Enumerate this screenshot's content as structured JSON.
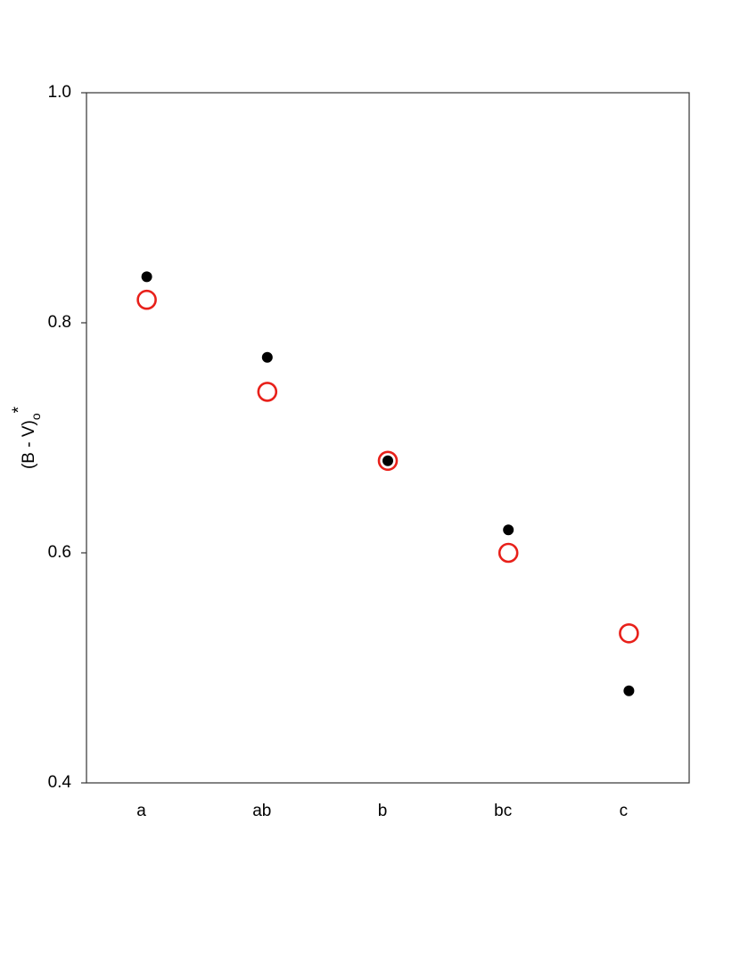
{
  "chart_data": {
    "type": "scatter",
    "ylabel": {
      "main": "(B - V)",
      "sub": "o",
      "sup": "*"
    },
    "categories": [
      "a",
      "ab",
      "b",
      "bc",
      "c"
    ],
    "series": [
      {
        "color": "#000000",
        "marker": "filled",
        "values": [
          0.84,
          0.77,
          0.68,
          0.62,
          0.48
        ]
      },
      {
        "color": "#e8201a",
        "marker": "open",
        "values": [
          0.82,
          0.74,
          0.68,
          0.6,
          0.53
        ]
      }
    ],
    "ylim": [
      0.4,
      1.0
    ],
    "yticks": [
      0.4,
      0.6,
      0.8,
      {
        "value": 1.0,
        "label": "1.0"
      }
    ],
    "grid": false
  }
}
